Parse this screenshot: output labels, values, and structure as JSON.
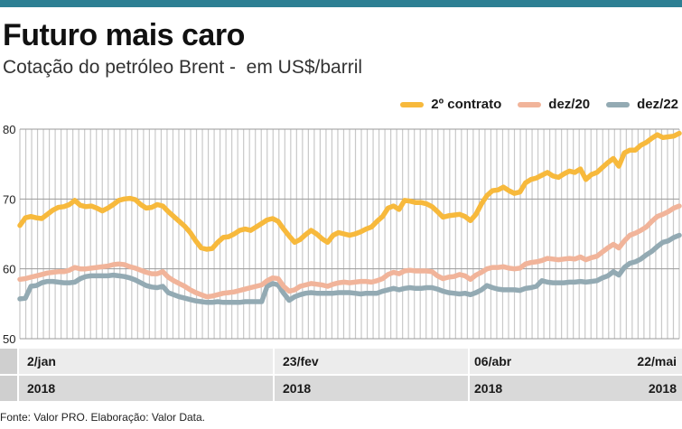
{
  "header": {
    "title": "Futuro mais caro",
    "subtitle": "Cotação do petróleo Brent -  em US$/barril"
  },
  "footer": {
    "source": "Fonte: Valor PRO. Elaboração: Valor Data."
  },
  "colors": {
    "topbar": "#2d7f93",
    "series_2o_contrato": "#f7b93c",
    "series_dez20": "#f1b49a",
    "series_dez22": "#93aab3",
    "axis_band_dark": "#d9d9d9",
    "axis_band_light": "#efefef"
  },
  "chart_data": {
    "type": "line",
    "ylim": [
      50,
      80
    ],
    "yticks": [
      "80",
      "70",
      "60",
      "50"
    ],
    "grid": true,
    "legend_position": "top-right",
    "x_date_labels": [
      "2/jan",
      "23/fev",
      "06/abr",
      "22/mai"
    ],
    "x_year_labels": [
      "2018",
      "2018",
      "2018",
      "2018"
    ],
    "series": [
      {
        "name": "2º contrato",
        "color": "#f7b93c",
        "values": [
          66.2,
          67.3,
          67.5,
          67.3,
          67.2,
          67.8,
          68.4,
          68.8,
          68.9,
          69.2,
          69.8,
          69.1,
          68.9,
          69.0,
          68.7,
          68.3,
          68.7,
          69.2,
          69.8,
          70.0,
          70.1,
          69.9,
          69.2,
          68.7,
          68.8,
          69.2,
          69.0,
          68.2,
          67.5,
          66.8,
          66.1,
          65.2,
          64.0,
          63.0,
          62.8,
          62.9,
          63.8,
          64.5,
          64.6,
          65.0,
          65.5,
          65.7,
          65.5,
          66.0,
          66.5,
          67.0,
          67.2,
          66.8,
          65.7,
          64.7,
          63.8,
          64.2,
          64.9,
          65.5,
          65.0,
          64.3,
          63.8,
          64.8,
          65.2,
          65.0,
          64.8,
          65.0,
          65.3,
          65.7,
          66.0,
          66.8,
          67.5,
          68.7,
          69.0,
          68.5,
          69.8,
          69.7,
          69.5,
          69.5,
          69.3,
          68.9,
          68.2,
          67.4,
          67.6,
          67.7,
          67.8,
          67.5,
          66.9,
          67.8,
          69.3,
          70.5,
          71.2,
          71.3,
          71.7,
          71.2,
          70.8,
          71.0,
          72.3,
          72.8,
          73.0,
          73.4,
          73.8,
          73.3,
          73.1,
          73.6,
          74.0,
          73.8,
          74.3,
          72.8,
          73.5,
          73.8,
          74.5,
          75.2,
          75.8,
          74.7,
          76.6,
          77.0,
          77.0,
          77.7,
          78.1,
          78.7,
          79.2,
          78.8,
          78.9,
          79.0,
          79.4
        ]
      },
      {
        "name": "dez/20",
        "color": "#f1b49a",
        "values": [
          58.5,
          58.6,
          58.8,
          59.0,
          59.2,
          59.4,
          59.5,
          59.6,
          59.6,
          59.8,
          60.2,
          60.0,
          60.0,
          60.1,
          60.2,
          60.3,
          60.4,
          60.6,
          60.7,
          60.6,
          60.3,
          60.1,
          59.8,
          59.5,
          59.3,
          59.3,
          59.6,
          58.8,
          58.3,
          57.9,
          57.5,
          57.0,
          56.6,
          56.3,
          56.0,
          56.1,
          56.3,
          56.5,
          56.6,
          56.7,
          56.9,
          57.1,
          57.3,
          57.5,
          57.7,
          58.3,
          58.7,
          58.6,
          57.5,
          56.8,
          57.0,
          57.5,
          57.7,
          57.9,
          57.8,
          57.7,
          57.5,
          57.8,
          58.0,
          58.1,
          58.0,
          58.1,
          58.2,
          58.2,
          58.1,
          58.3,
          58.6,
          59.2,
          59.5,
          59.3,
          59.7,
          59.8,
          59.7,
          59.7,
          59.7,
          59.6,
          59.0,
          58.6,
          58.8,
          58.9,
          59.2,
          59.0,
          58.5,
          59.1,
          59.5,
          60.0,
          60.2,
          60.2,
          60.3,
          60.1,
          60.0,
          60.1,
          60.7,
          60.9,
          61.0,
          61.2,
          61.5,
          61.4,
          61.3,
          61.4,
          61.5,
          61.4,
          61.7,
          61.3,
          61.6,
          61.8,
          62.4,
          63.0,
          63.5,
          63.0,
          64.0,
          64.8,
          65.1,
          65.5,
          66.0,
          66.8,
          67.5,
          67.8,
          68.2,
          68.7,
          69.0
        ]
      },
      {
        "name": "dez/22",
        "color": "#93aab3",
        "values": [
          55.7,
          55.8,
          57.5,
          57.6,
          58.0,
          58.2,
          58.2,
          58.1,
          58.0,
          58.0,
          58.1,
          58.6,
          58.9,
          59.0,
          59.0,
          59.0,
          59.0,
          59.1,
          59.0,
          58.9,
          58.7,
          58.4,
          58.0,
          57.6,
          57.4,
          57.3,
          57.5,
          56.6,
          56.3,
          56.0,
          55.8,
          55.6,
          55.4,
          55.3,
          55.2,
          55.2,
          55.3,
          55.2,
          55.2,
          55.2,
          55.2,
          55.3,
          55.3,
          55.3,
          55.3,
          57.5,
          57.9,
          57.7,
          56.5,
          55.5,
          56.0,
          56.3,
          56.5,
          56.6,
          56.5,
          56.5,
          56.5,
          56.5,
          56.6,
          56.6,
          56.6,
          56.5,
          56.4,
          56.5,
          56.5,
          56.5,
          56.8,
          57.0,
          57.2,
          57.0,
          57.2,
          57.3,
          57.2,
          57.2,
          57.3,
          57.3,
          57.1,
          56.8,
          56.6,
          56.5,
          56.4,
          56.5,
          56.3,
          56.6,
          57.0,
          57.6,
          57.3,
          57.1,
          57.0,
          57.0,
          57.0,
          56.9,
          57.2,
          57.3,
          57.5,
          58.3,
          58.1,
          58.0,
          58.0,
          58.0,
          58.1,
          58.1,
          58.2,
          58.1,
          58.2,
          58.3,
          58.7,
          59.0,
          59.6,
          59.1,
          60.2,
          60.8,
          61.0,
          61.4,
          62.0,
          62.5,
          63.2,
          63.8,
          64.0,
          64.5,
          64.8
        ]
      }
    ]
  }
}
